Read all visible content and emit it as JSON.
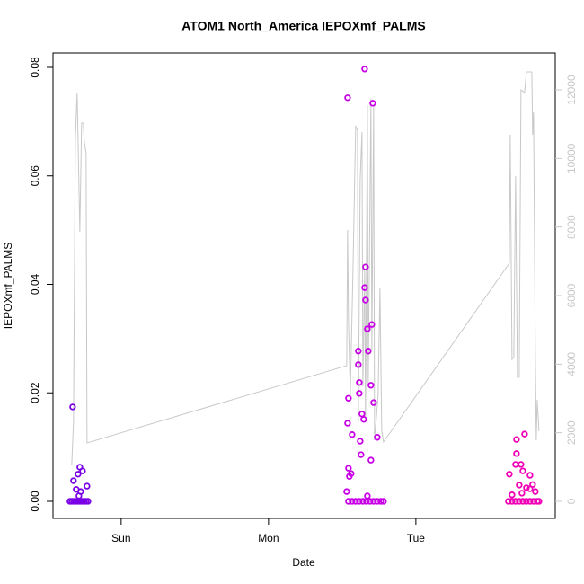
{
  "chart_data": {
    "type": "scatter",
    "title": "ATOM1 North_America IEPOXmf_PALMS",
    "x_label": "Date",
    "y_label": "IEPOXmf_PALMS",
    "xlim": [
      -11.1,
      70.7
    ],
    "xticks": [
      {
        "value": 0,
        "label": "Sun"
      },
      {
        "value": 24,
        "label": "Mon"
      },
      {
        "value": 48,
        "label": "Tue"
      }
    ],
    "ylim": [
      -0.00315,
      0.08265
    ],
    "yticks": [
      {
        "value": 0,
        "label": "0.00"
      },
      {
        "value": 0.02,
        "label": "0.02"
      },
      {
        "value": 0.04,
        "label": "0.04"
      },
      {
        "value": 0.06,
        "label": "0.06"
      },
      {
        "value": 0.08,
        "label": "0.08"
      }
    ],
    "y2lim": [
      -498,
      13075
    ],
    "y2ticks": [
      0,
      2000,
      4000,
      6000,
      8000,
      10000,
      12000
    ],
    "y2_color": "#c8c8c8",
    "series": [
      {
        "axis": "y2",
        "color": "#c8c8c8",
        "x": [
          -8.05,
          -7.76,
          -7.46,
          -7.17,
          -7.02,
          -6.73,
          -6.44,
          -6.15,
          -6.0,
          -5.71,
          -5.56,
          36.73,
          36.88,
          37.02,
          37.32,
          37.76,
          38.2,
          38.49,
          38.63,
          38.93,
          39.22,
          39.37,
          39.66,
          39.8,
          40.1,
          40.24,
          40.68,
          40.83,
          41.12,
          41.27,
          41.85,
          42.15,
          42.44,
          42.73,
          63.22,
          63.37,
          63.66,
          63.95,
          64.24,
          64.54,
          64.83,
          65.12,
          65.71,
          66.0,
          66.88,
          67.02,
          67.17,
          67.46,
          67.61,
          67.76,
          68.05
        ],
        "values": [
          1074,
          2306,
          10559,
          11921,
          10559,
          7860,
          11030,
          11030,
          10480,
          10166,
          1703,
          3956,
          7912,
          5292,
          3092,
          6760,
          10952,
          10821,
          2306,
          9380,
          10768,
          3354,
          6760,
          2306,
          11554,
          3354,
          11738,
          4402,
          11528,
          1782,
          3092,
          6236,
          2044,
          1729,
          6943,
          10690,
          4140,
          4192,
          9484,
          3616,
          3616,
          12000,
          11921,
          12524,
          12524,
          10690,
          11345,
          4140,
          1782,
          2961,
          2044
        ]
      },
      {
        "color": "#7a00e6",
        "x": [
          -8.34,
          -8.05,
          -7.76,
          -7.46,
          -7.17,
          -6.88,
          -6.59,
          -6.29,
          -6.0,
          -5.71,
          -5.41,
          -7.9,
          -7.76,
          -6.73,
          -7.02,
          -6.29,
          -5.56,
          -7.32,
          -6.59,
          -6.88
        ],
        "values": [
          0,
          0,
          0,
          0,
          0,
          0,
          0,
          0,
          0,
          0,
          0,
          0.0174,
          0.0038,
          0.0063,
          0.005,
          0.0056,
          0.0028,
          0.0022,
          0.0018,
          0.001
        ]
      },
      {
        "color": "#c800e6",
        "x": [
          37.02,
          37.61,
          38.2,
          38.78,
          39.37,
          39.95,
          40.54,
          41.12,
          41.71,
          42.29,
          42.73,
          36.88,
          39.66,
          40.98,
          39.8,
          39.66,
          39.8,
          40.83,
          40.1,
          40.24,
          38.63,
          38.63,
          38.78,
          40.68,
          38.78,
          37.02,
          41.12,
          39.22,
          36.88,
          39.51,
          37.61,
          41.71,
          38.93,
          39.07,
          40.68,
          37.02,
          37.46,
          37.17,
          36.73,
          40.1
        ],
        "values": [
          0,
          0,
          0,
          0,
          0,
          0,
          0,
          0,
          0,
          0,
          0,
          0.0744,
          0.0797,
          0.0734,
          0.0432,
          0.0394,
          0.0371,
          0.0326,
          0.0318,
          0.0277,
          0.0277,
          0.0252,
          0.0219,
          0.0214,
          0.0199,
          0.019,
          0.0182,
          0.0161,
          0.0144,
          0.0151,
          0.0123,
          0.0118,
          0.0111,
          0.0086,
          0.0076,
          0.0061,
          0.0051,
          0.0046,
          0.0018,
          0.001
        ]
      },
      {
        "color": "#f000b4",
        "x": [
          63.07,
          63.66,
          64.24,
          64.83,
          65.42,
          66.0,
          66.59,
          67.17,
          67.76,
          68.05,
          65.71,
          64.39,
          64.39,
          64.24,
          65.12,
          63.22,
          65.42,
          66.59,
          64.83,
          67.02,
          66.0,
          67.46,
          63.66,
          65.27,
          66.59
        ],
        "values": [
          0,
          0,
          0,
          0,
          0,
          0,
          0,
          0,
          0,
          0,
          0.0124,
          0.0114,
          0.0088,
          0.0068,
          0.0068,
          0.005,
          0.0056,
          0.0048,
          0.003,
          0.0031,
          0.0025,
          0.0018,
          0.0012,
          0.0015,
          0.0023
        ]
      }
    ]
  }
}
